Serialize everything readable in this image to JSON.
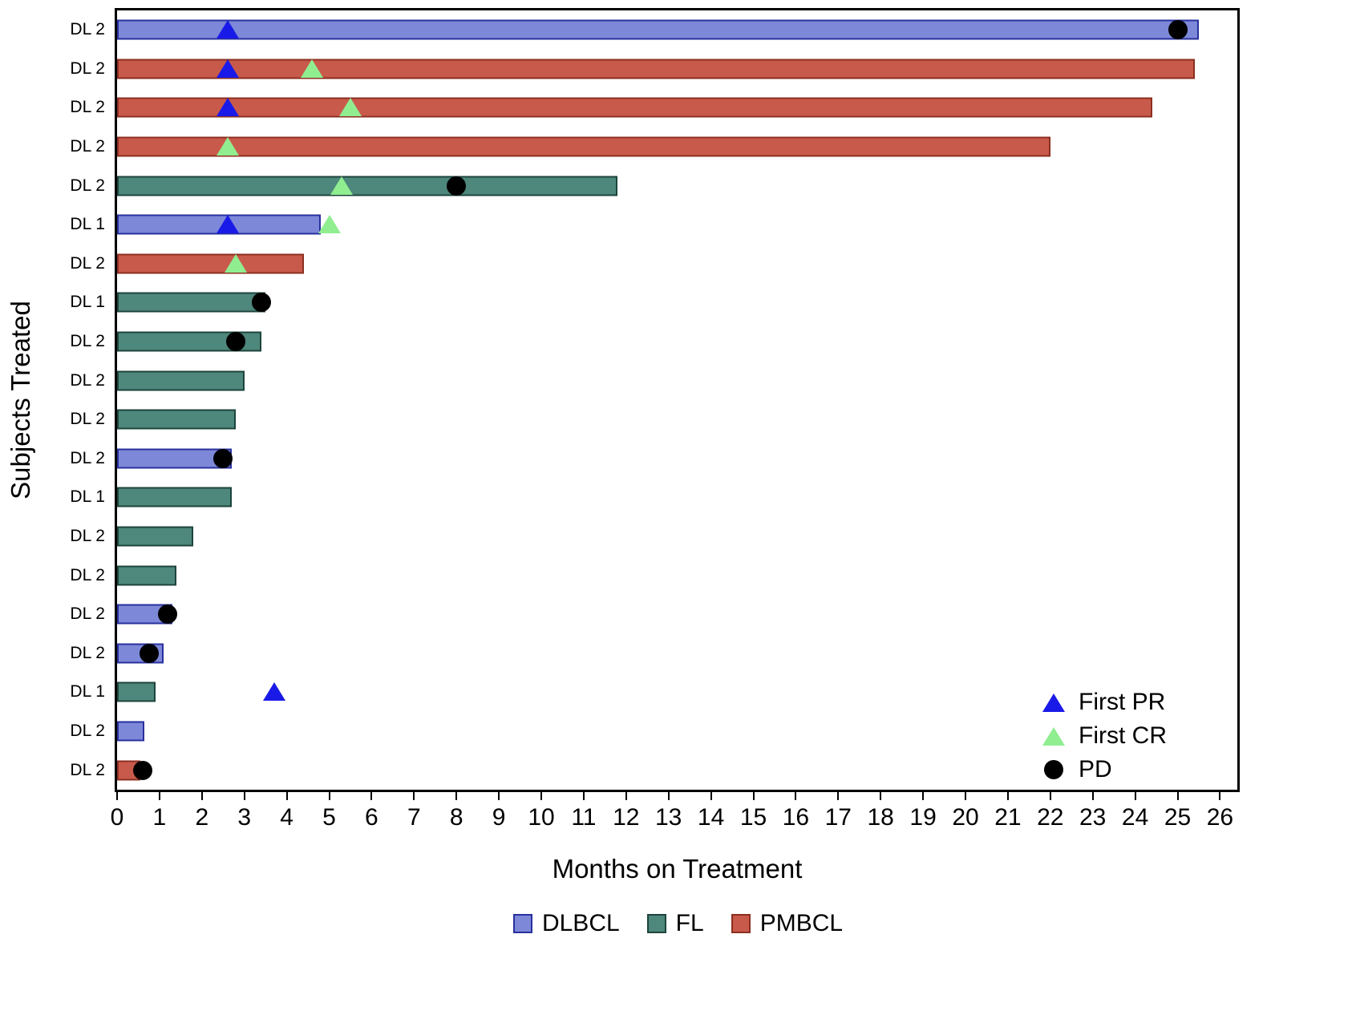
{
  "chart_data": {
    "type": "bar",
    "subtype": "swimmer-plot",
    "orientation": "horizontal",
    "title": "",
    "xlabel": "Months on Treatment",
    "ylabel": "Subjects Treated",
    "xlim": [
      0,
      26.5
    ],
    "x_ticks": [
      0,
      1,
      2,
      3,
      4,
      5,
      6,
      7,
      8,
      9,
      10,
      11,
      12,
      13,
      14,
      15,
      16,
      17,
      18,
      19,
      20,
      21,
      22,
      23,
      24,
      25,
      26
    ],
    "grid": false,
    "rows": [
      {
        "label": "DL 2",
        "group": "DLBCL",
        "months": 25.5,
        "markers": [
          {
            "type": "first_pr",
            "x": 2.6
          },
          {
            "type": "pd",
            "x": 25.0
          }
        ]
      },
      {
        "label": "DL 2",
        "group": "PMBCL",
        "months": 25.4,
        "markers": [
          {
            "type": "first_pr",
            "x": 2.6
          },
          {
            "type": "first_cr",
            "x": 4.6
          }
        ]
      },
      {
        "label": "DL 2",
        "group": "PMBCL",
        "months": 24.4,
        "markers": [
          {
            "type": "first_pr",
            "x": 2.6
          },
          {
            "type": "first_cr",
            "x": 5.5
          }
        ]
      },
      {
        "label": "DL 2",
        "group": "PMBCL",
        "months": 22.0,
        "markers": [
          {
            "type": "first_cr",
            "x": 2.6
          }
        ]
      },
      {
        "label": "DL 2",
        "group": "FL",
        "months": 11.8,
        "markers": [
          {
            "type": "first_cr",
            "x": 5.3
          },
          {
            "type": "pd",
            "x": 8.0
          }
        ]
      },
      {
        "label": "DL 1",
        "group": "DLBCL",
        "months": 4.8,
        "markers": [
          {
            "type": "first_pr",
            "x": 2.6
          },
          {
            "type": "first_cr",
            "x": 5.0
          }
        ]
      },
      {
        "label": "DL 2",
        "group": "PMBCL",
        "months": 4.4,
        "markers": [
          {
            "type": "first_cr",
            "x": 2.8
          }
        ]
      },
      {
        "label": "DL 1",
        "group": "FL",
        "months": 3.5,
        "markers": [
          {
            "type": "pd",
            "x": 3.4
          }
        ]
      },
      {
        "label": "DL 2",
        "group": "FL",
        "months": 3.4,
        "markers": [
          {
            "type": "pd",
            "x": 2.8
          }
        ]
      },
      {
        "label": "DL 2",
        "group": "FL",
        "months": 3.0,
        "markers": []
      },
      {
        "label": "DL 2",
        "group": "FL",
        "months": 2.8,
        "markers": []
      },
      {
        "label": "DL 2",
        "group": "DLBCL",
        "months": 2.7,
        "markers": [
          {
            "type": "pd",
            "x": 2.5
          }
        ]
      },
      {
        "label": "DL 1",
        "group": "FL",
        "months": 2.7,
        "markers": []
      },
      {
        "label": "DL 2",
        "group": "FL",
        "months": 1.8,
        "markers": []
      },
      {
        "label": "DL 2",
        "group": "FL",
        "months": 1.4,
        "markers": []
      },
      {
        "label": "DL 2",
        "group": "DLBCL",
        "months": 1.3,
        "markers": [
          {
            "type": "pd",
            "x": 1.2
          }
        ]
      },
      {
        "label": "DL 2",
        "group": "DLBCL",
        "months": 1.1,
        "markers": [
          {
            "type": "pd",
            "x": 0.75
          }
        ]
      },
      {
        "label": "DL 1",
        "group": "FL",
        "months": 0.9,
        "markers": [
          {
            "type": "first_pr",
            "x": 3.7
          }
        ]
      },
      {
        "label": "DL 2",
        "group": "DLBCL",
        "months": 0.65,
        "markers": []
      },
      {
        "label": "DL 2",
        "group": "PMBCL",
        "months": 0.55,
        "markers": [
          {
            "type": "pd",
            "x": 0.6
          }
        ]
      }
    ],
    "groups": {
      "DLBCL": {
        "label": "DLBCL",
        "fill": "#7d88d8",
        "border": "#28309e"
      },
      "FL": {
        "label": "FL",
        "fill": "#4e877c",
        "border": "#1d443c"
      },
      "PMBCL": {
        "label": "PMBCL",
        "fill": "#c85a4b",
        "border": "#8c2f20"
      }
    },
    "markers": {
      "first_pr": {
        "shape": "triangle",
        "color": "#1a1ae8",
        "label": "First PR"
      },
      "first_cr": {
        "shape": "triangle",
        "color": "#90ee90",
        "label": "First CR"
      },
      "pd": {
        "shape": "circle",
        "color": "#000000",
        "label": "PD"
      }
    },
    "marker_legend_order": [
      "first_pr",
      "first_cr",
      "pd"
    ],
    "group_legend_order": [
      "DLBCL",
      "FL",
      "PMBCL"
    ]
  }
}
